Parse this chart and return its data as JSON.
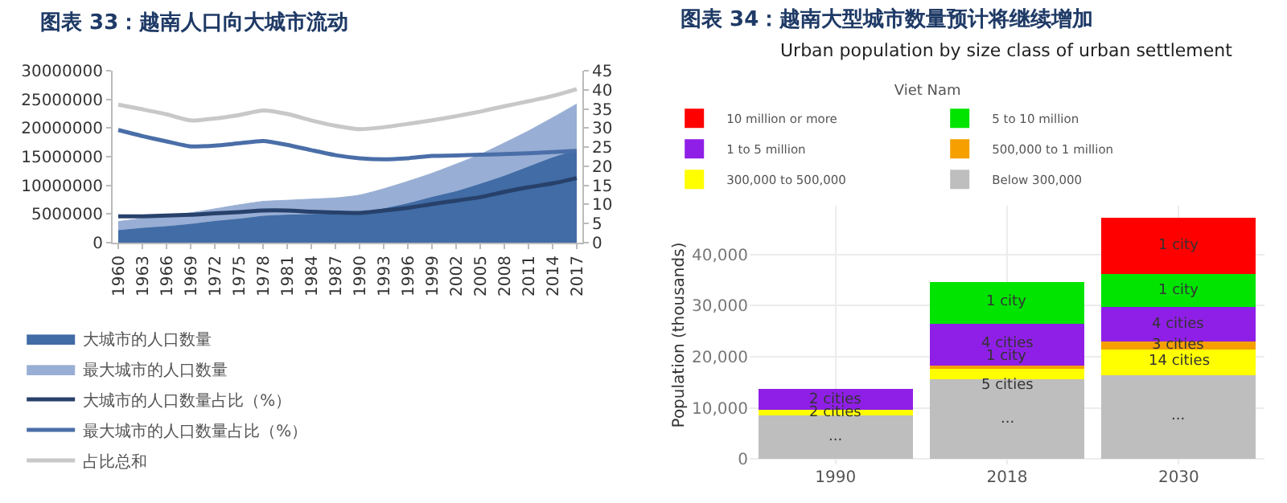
{
  "chart_data": [
    {
      "type": "area",
      "title": "图表 33：越南人口向大城市流动",
      "x": [
        1960,
        1963,
        1966,
        1969,
        1972,
        1975,
        1978,
        1981,
        1984,
        1987,
        1990,
        1993,
        1996,
        1999,
        2002,
        2005,
        2008,
        2011,
        2014,
        2017
      ],
      "xlim": [
        1959.3,
        2017.7
      ],
      "xticks": [
        1960,
        1963,
        1966,
        1969,
        1972,
        1975,
        1978,
        1981,
        1984,
        1987,
        1990,
        1993,
        1996,
        1999,
        2002,
        2005,
        2008,
        2011,
        2014,
        2017
      ],
      "ylim": [
        0,
        30000000
      ],
      "yticks": [
        0,
        5000000,
        10000000,
        15000000,
        20000000,
        25000000,
        30000000
      ],
      "y2lim": [
        0,
        45
      ],
      "y2ticks": [
        0,
        5,
        10,
        15,
        20,
        25,
        30,
        35,
        40,
        45
      ],
      "grid": false,
      "legend": "bottom",
      "series": [
        {
          "name": "大城市的人口数量",
          "color": "#416ca5",
          "values": [
            2100000,
            2500000,
            2800000,
            3200000,
            3700000,
            4100000,
            4600000,
            4800000,
            4900000,
            5000000,
            5200000,
            5900000,
            6800000,
            7900000,
            8900000,
            10200000,
            11600000,
            13200000,
            14800000,
            16100000
          ]
        },
        {
          "name": "最大城市的人口数量",
          "color": "#98aed4",
          "values": [
            3700000,
            4200000,
            4700000,
            5200000,
            5900000,
            6600000,
            7200000,
            7400000,
            7600000,
            7800000,
            8300000,
            9400000,
            10700000,
            12100000,
            13700000,
            15400000,
            17400000,
            19500000,
            21800000,
            24200000
          ]
        },
        {
          "name": "大城市的人口数量占比（%）",
          "type": "line",
          "axis": "y2",
          "color": "#27416b",
          "values": [
            6.9,
            6.9,
            7.1,
            7.3,
            7.7,
            8.0,
            8.4,
            8.4,
            8.1,
            7.9,
            7.8,
            8.4,
            9.1,
            10.1,
            11.0,
            11.9,
            13.3,
            14.5,
            15.5,
            16.9
          ]
        },
        {
          "name": "最大城市的人口数量占比（%）",
          "type": "line",
          "axis": "y2",
          "color": "#4a6ea8",
          "values": [
            29.5,
            27.9,
            26.5,
            25.2,
            25.4,
            26.0,
            26.6,
            25.6,
            24.2,
            22.9,
            22.1,
            21.8,
            22.1,
            22.7,
            22.8,
            23.0,
            23.2,
            23.4,
            23.7,
            24.0
          ]
        },
        {
          "name": "占比总和",
          "type": "line",
          "axis": "y2",
          "color": "#c8c8c8",
          "values": [
            36.1,
            34.9,
            33.6,
            32.0,
            32.5,
            33.4,
            34.6,
            33.7,
            32.0,
            30.6,
            29.7,
            30.2,
            31.1,
            32.0,
            33.1,
            34.3,
            35.7,
            37.0,
            38.4,
            40.2
          ]
        }
      ]
    },
    {
      "type": "bar",
      "stacked": true,
      "title": "图表 34：越南大型城市数量预计将继续增加",
      "subtitle": "Urban population by size class of urban settlement",
      "legend_title": "Viet Nam",
      "ylabel": "Population (thousands)",
      "categories": [
        "1990",
        "2018",
        "2030"
      ],
      "ylim": [
        -1100,
        49600
      ],
      "yticks": [
        {
          "value": 0,
          "label": "0"
        },
        {
          "value": 10000,
          "label": "10,000"
        },
        {
          "value": 20000,
          "label": "20,000"
        },
        {
          "value": 30000,
          "label": "30,000"
        },
        {
          "value": 40000,
          "label": "40,000"
        }
      ],
      "grid": true,
      "legend": "top",
      "series": [
        {
          "name": "Below 300,000",
          "color": "#bebebe",
          "values": [
            8500,
            15600,
            16400
          ]
        },
        {
          "name": "300,000 to 500,000",
          "color": "#ffff00",
          "values": [
            1100,
            2000,
            5000
          ]
        },
        {
          "name": "500,000 to 1 million",
          "color": "#f5a000",
          "values": [
            null,
            700,
            1600
          ]
        },
        {
          "name": "1 to 5 million",
          "color": "#8f1fe6",
          "values": [
            4100,
            8200,
            6700
          ]
        },
        {
          "name": "5 to 10 million",
          "color": "#00e400",
          "values": [
            null,
            8200,
            6500
          ]
        },
        {
          "name": "10 million or more",
          "color": "#ff0000",
          "values": [
            null,
            null,
            11100
          ]
        }
      ],
      "annotations": [
        {
          "text": "...",
          "x": "1990",
          "y": 8500
        },
        {
          "text": "2 cities",
          "x": "1990",
          "y": 9600
        },
        {
          "text": "2 cities",
          "x": "1990",
          "y": 13700
        },
        {
          "text": "...",
          "x": "2018",
          "y": 15600
        },
        {
          "text": "5 cities",
          "x": "2018",
          "y": 17600
        },
        {
          "text": "1 city",
          "x": "2018",
          "y": 18300
        },
        {
          "text": "4 cities",
          "x": "2018",
          "y": 26500
        },
        {
          "text": "1 city",
          "x": "2018",
          "y": 34700
        },
        {
          "text": "...",
          "x": "2030",
          "y": 16400
        },
        {
          "text": "14 cities",
          "x": "2030",
          "y": 21400
        },
        {
          "text": "3 cities",
          "x": "2030",
          "y": 23000
        },
        {
          "text": "4 cities",
          "x": "2030",
          "y": 29700
        },
        {
          "text": "1 city",
          "x": "2030",
          "y": 36200
        },
        {
          "text": "1 city",
          "x": "2030",
          "y": 47300
        }
      ]
    }
  ]
}
